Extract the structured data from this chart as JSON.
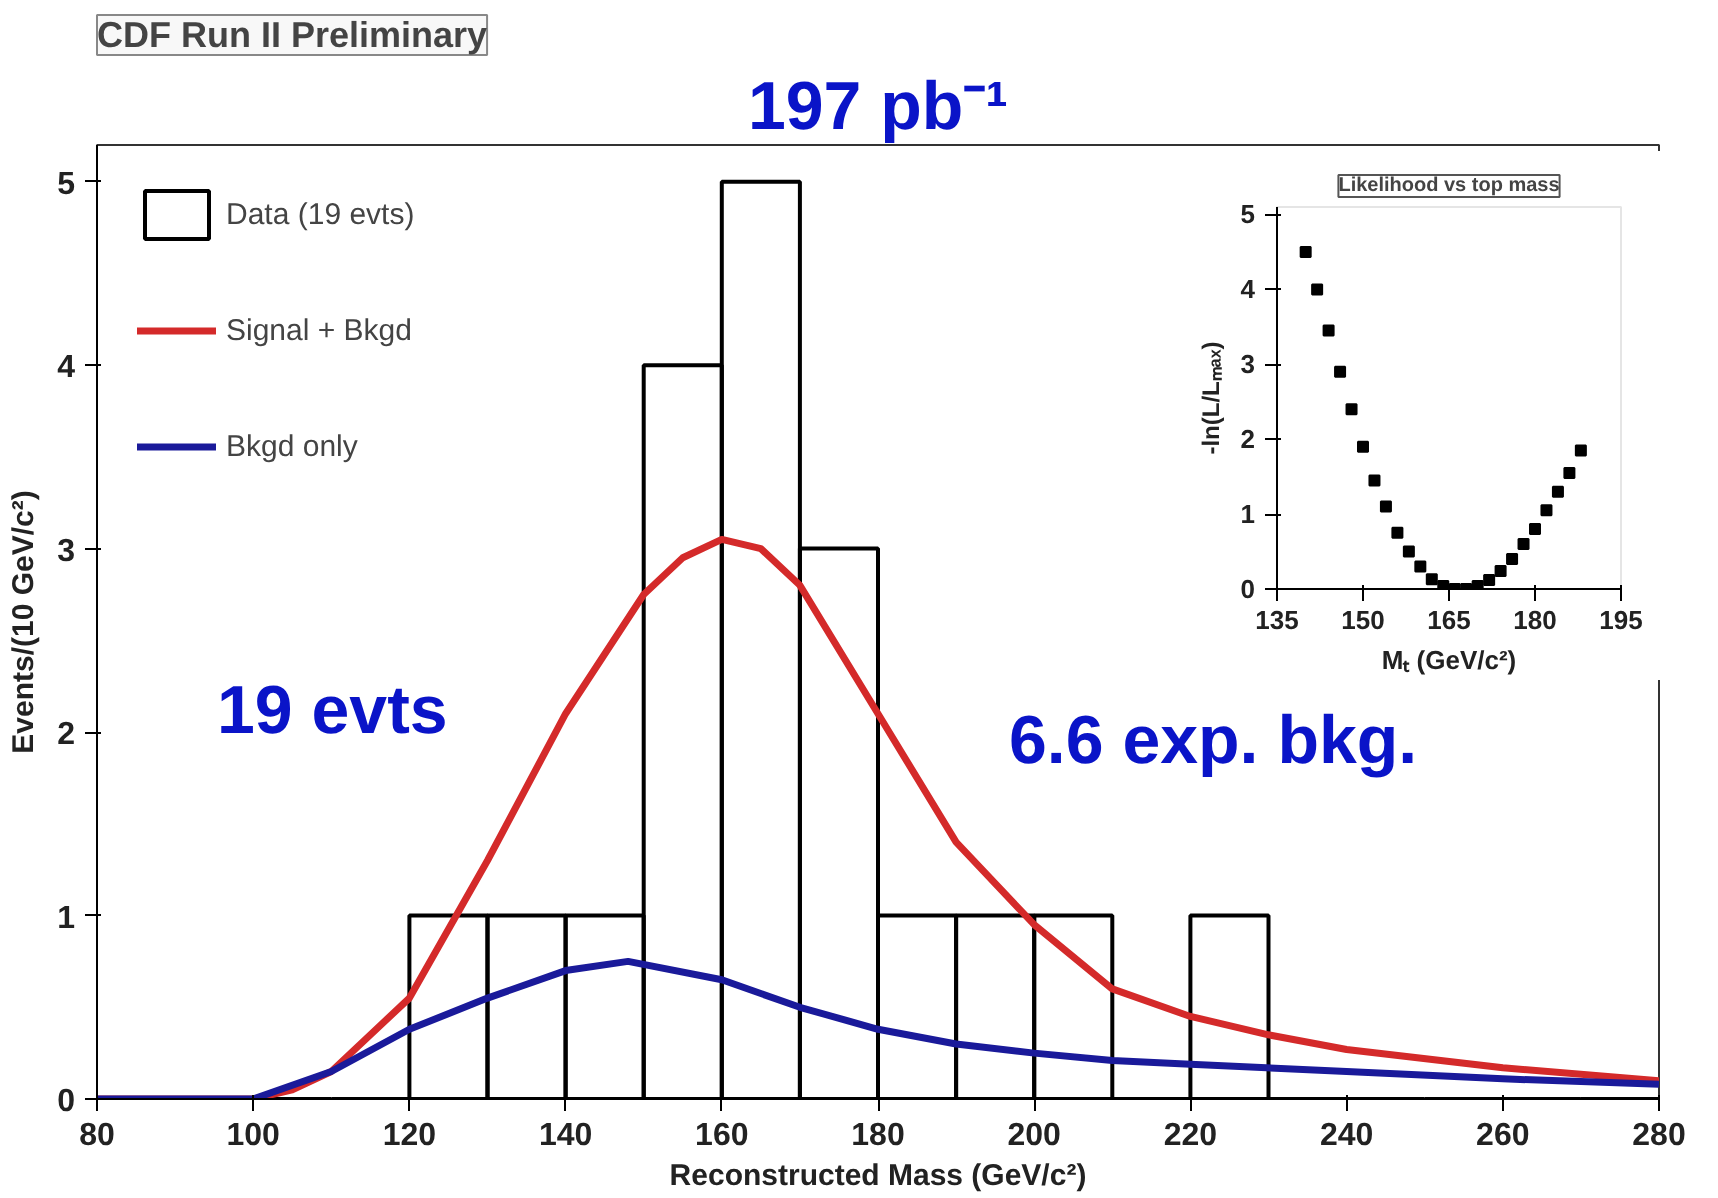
{
  "chart_data": [
    {
      "type": "histogram",
      "title": "CDF Run II Preliminary",
      "xlabel": "Reconstructed Mass (GeV/c²)",
      "ylabel": "Events/(10 GeV/c²)",
      "annotations": [
        "197 pb⁻¹",
        "19 evts",
        "6.6 exp. bkg."
      ],
      "series": [
        {
          "name": "Data (19 evts)",
          "type": "histogram",
          "color": "#000000",
          "bins": [
            80,
            90,
            100,
            110,
            120,
            130,
            140,
            150,
            160,
            170,
            180,
            190,
            200,
            210,
            220,
            230,
            240,
            250,
            260,
            270,
            280
          ],
          "values": [
            0,
            0,
            0,
            0,
            1,
            1,
            1,
            4,
            5,
            3,
            1,
            1,
            1,
            0,
            1,
            0,
            0,
            0,
            0,
            0
          ]
        },
        {
          "name": "Signal + Bkgd",
          "type": "line",
          "color": "#d42a2a",
          "x": [
            80,
            90,
            100,
            105,
            110,
            120,
            130,
            140,
            150,
            155,
            160,
            165,
            170,
            180,
            190,
            200,
            210,
            220,
            230,
            240,
            260,
            280
          ],
          "values": [
            0,
            0,
            0,
            0.05,
            0.15,
            0.55,
            1.3,
            2.1,
            2.75,
            2.95,
            3.05,
            3.0,
            2.8,
            2.1,
            1.4,
            0.95,
            0.6,
            0.45,
            0.35,
            0.27,
            0.17,
            0.1
          ]
        },
        {
          "name": "Bkgd only",
          "type": "line",
          "color": "#1a1a9a",
          "x": [
            80,
            90,
            100,
            110,
            120,
            130,
            140,
            148,
            160,
            170,
            180,
            190,
            200,
            210,
            220,
            240,
            260,
            280
          ],
          "values": [
            0,
            0,
            0,
            0.15,
            0.38,
            0.55,
            0.7,
            0.75,
            0.65,
            0.5,
            0.38,
            0.3,
            0.25,
            0.21,
            0.19,
            0.15,
            0.11,
            0.08
          ]
        }
      ],
      "xlim": [
        80,
        280
      ],
      "ylim": [
        0,
        5.2
      ],
      "xticks": [
        80,
        100,
        120,
        140,
        160,
        180,
        200,
        220,
        240,
        260,
        280
      ],
      "yticks": [
        0,
        1,
        2,
        3,
        4,
        5
      ],
      "legend": "top left",
      "grid": false
    },
    {
      "type": "scatter",
      "title": "Likelihood vs top mass",
      "xlabel": "Mₜ (GeV/c²)",
      "ylabel": "-ln(L/Lₘₐₓ)",
      "marker": "square",
      "color": "#000000",
      "x": [
        140,
        142,
        144,
        146,
        148,
        150,
        152,
        154,
        156,
        158,
        160,
        162,
        164,
        166,
        168,
        170,
        172,
        174,
        176,
        178,
        180,
        182,
        184,
        186,
        188
      ],
      "values": [
        4.5,
        4.0,
        3.45,
        2.9,
        2.4,
        1.9,
        1.45,
        1.1,
        0.75,
        0.5,
        0.3,
        0.13,
        0.04,
        0,
        0,
        0.04,
        0.12,
        0.24,
        0.4,
        0.6,
        0.8,
        1.05,
        1.3,
        1.55,
        1.85
      ],
      "xlim": [
        135,
        195
      ],
      "ylim": [
        0,
        5.1
      ],
      "xticks": [
        135,
        150,
        165,
        180,
        195
      ],
      "yticks": [
        0,
        1,
        2,
        3,
        4,
        5
      ],
      "grid": false
    }
  ]
}
